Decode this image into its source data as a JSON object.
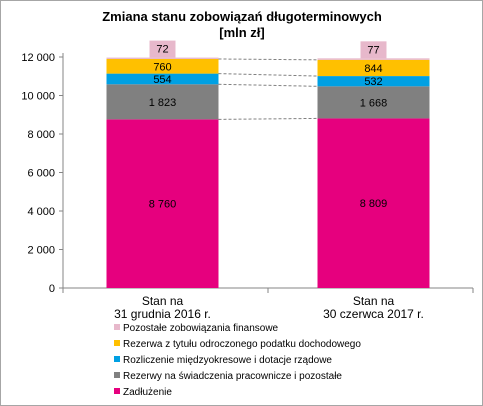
{
  "chart_data": {
    "type": "bar",
    "stacked": true,
    "title": "Zmiana stanu zobowiązań długoterminowych",
    "subtitle": "[mln zł]",
    "categories": [
      [
        "Stan na",
        "31 grudnia 2016 r."
      ],
      [
        "Stan na",
        "30 czerwca 2017 r."
      ]
    ],
    "series": [
      {
        "name": "Zadłużenie",
        "color": "#e6007e",
        "values": [
          8760,
          8809
        ],
        "labels": [
          "8 760",
          "8 809"
        ]
      },
      {
        "name": "Rezerwy na świadczenia pracownicze i pozostałe",
        "color": "#808080",
        "values": [
          1823,
          1668
        ],
        "labels": [
          "1 823",
          "1 668"
        ]
      },
      {
        "name": "Rozliczenie międzyokresowe i dotacje rządowe",
        "color": "#00a0e3",
        "values": [
          554,
          532
        ],
        "labels": [
          "554",
          "532"
        ]
      },
      {
        "name": "Rezerwa z tytułu odroczonego podatku dochodowego",
        "color": "#ffc000",
        "values": [
          760,
          844
        ],
        "labels": [
          "760",
          "844"
        ]
      },
      {
        "name": "Pozostałe zobowiązania finansowe",
        "color": "#e7b8cb",
        "values": [
          72,
          77
        ],
        "labels": [
          "72",
          "77"
        ]
      }
    ],
    "ylim": [
      0,
      12000
    ],
    "yticks": [
      0,
      2000,
      4000,
      6000,
      8000,
      10000,
      12000
    ],
    "ytick_labels": [
      "0",
      "2 000",
      "4 000",
      "6 000",
      "8 000",
      "10 000",
      "12 000"
    ],
    "legend_position": "bottom",
    "connector_lines": true
  }
}
